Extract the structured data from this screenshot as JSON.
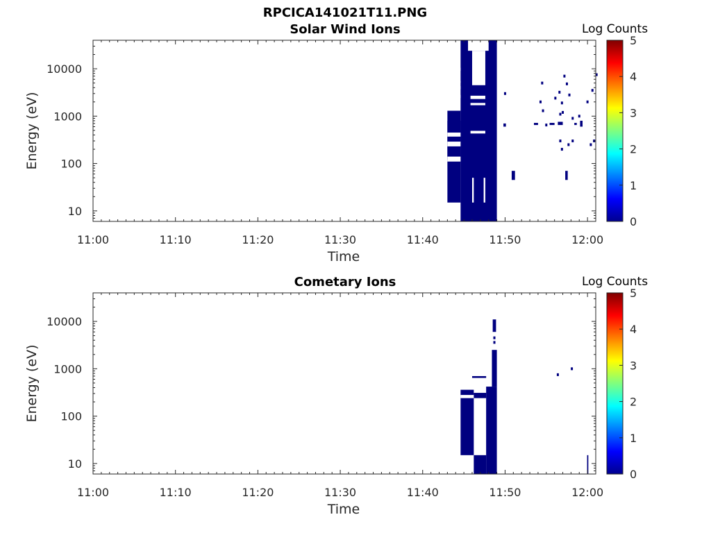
{
  "figure_title": "RPCICA141021T11.PNG",
  "chart_data": [
    {
      "type": "heatmap",
      "title": "Solar Wind Ions",
      "xlabel": "Time",
      "ylabel": "Energy (eV)",
      "x_ticks": [
        "11:00",
        "11:10",
        "11:20",
        "11:30",
        "11:40",
        "11:50",
        "12:00"
      ],
      "y_ticks": [
        "10",
        "100",
        "1000",
        "10000"
      ],
      "y_scale": "log",
      "ylim": [
        6,
        40000
      ],
      "xlim_minutes": [
        0,
        61
      ],
      "colorbar": {
        "label": "Log Counts",
        "range": [
          0,
          5
        ],
        "ticks": [
          "0",
          "1",
          "2",
          "3",
          "4",
          "5"
        ]
      },
      "fill_color": "#000080",
      "cells": [
        {
          "t": [
            43.0,
            44.6
          ],
          "e": [
            15,
            1300
          ]
        },
        {
          "t": [
            44.6,
            49.0
          ],
          "e": [
            6,
            40000
          ]
        },
        {
          "t": [
            43.0,
            44.6
          ],
          "e": [
            120,
            800
          ]
        },
        {
          "t": [
            50.8,
            51.2
          ],
          "e": [
            45,
            70
          ]
        },
        {
          "t": [
            49.8,
            50.1
          ],
          "e": [
            600,
            700
          ]
        },
        {
          "t": [
            53.5,
            54.0
          ],
          "e": [
            650,
            720
          ]
        },
        {
          "t": [
            55.4,
            56.0
          ],
          "e": [
            650,
            720
          ]
        },
        {
          "t": [
            56.4,
            57.0
          ],
          "e": [
            650,
            760
          ]
        },
        {
          "t": [
            57.3,
            57.6
          ],
          "e": [
            45,
            70
          ]
        },
        {
          "t": [
            58.4,
            58.7
          ],
          "e": [
            650,
            720
          ]
        },
        {
          "t": [
            59.1,
            59.4
          ],
          "e": [
            600,
            800
          ]
        }
      ],
      "gaps": [
        {
          "t": [
            45.5,
            48.0
          ],
          "e": [
            24000,
            40000
          ]
        },
        {
          "t": [
            46.0,
            47.6
          ],
          "e": [
            4500,
            24000
          ]
        },
        {
          "t": [
            43.0,
            44.6
          ],
          "e": [
            9000,
            10500
          ]
        },
        {
          "t": [
            43.0,
            44.6
          ],
          "e": [
            5000,
            5600
          ]
        },
        {
          "t": [
            43.0,
            44.6
          ],
          "e": [
            3700,
            4300
          ]
        },
        {
          "t": [
            43.0,
            44.6
          ],
          "e": [
            2400,
            2800
          ]
        },
        {
          "t": [
            43.0,
            44.6
          ],
          "e": [
            370,
            450
          ]
        },
        {
          "t": [
            43.0,
            44.6
          ],
          "e": [
            230,
            290
          ]
        },
        {
          "t": [
            43.0,
            44.6
          ],
          "e": [
            110,
            140
          ]
        },
        {
          "t": [
            45.8,
            47.6
          ],
          "e": [
            2300,
            2700
          ]
        },
        {
          "t": [
            45.8,
            47.6
          ],
          "e": [
            1700,
            1900
          ]
        },
        {
          "t": [
            45.8,
            47.6
          ],
          "e": [
            430,
            490
          ]
        },
        {
          "t": [
            46.0,
            46.2
          ],
          "e": [
            15,
            50
          ]
        },
        {
          "t": [
            47.4,
            47.6
          ],
          "e": [
            15,
            50
          ]
        }
      ],
      "points": [
        {
          "t": 50.0,
          "e": 3000
        },
        {
          "t": 54.5,
          "e": 5000
        },
        {
          "t": 54.3,
          "e": 2000
        },
        {
          "t": 54.6,
          "e": 1300
        },
        {
          "t": 55.0,
          "e": 650
        },
        {
          "t": 56.1,
          "e": 2400
        },
        {
          "t": 56.6,
          "e": 3200
        },
        {
          "t": 56.9,
          "e": 1900
        },
        {
          "t": 57.2,
          "e": 7000
        },
        {
          "t": 57.5,
          "e": 4800
        },
        {
          "t": 57.8,
          "e": 2800
        },
        {
          "t": 56.7,
          "e": 1100
        },
        {
          "t": 57.0,
          "e": 1200
        },
        {
          "t": 58.2,
          "e": 900
        },
        {
          "t": 56.7,
          "e": 300
        },
        {
          "t": 56.9,
          "e": 200
        },
        {
          "t": 57.7,
          "e": 250
        },
        {
          "t": 58.2,
          "e": 300
        },
        {
          "t": 60.0,
          "e": 2000
        },
        {
          "t": 60.6,
          "e": 3500
        },
        {
          "t": 60.4,
          "e": 250
        },
        {
          "t": 60.8,
          "e": 300
        },
        {
          "t": 61.1,
          "e": 7500
        },
        {
          "t": 59.0,
          "e": 1000
        }
      ]
    },
    {
      "type": "heatmap",
      "title": "Cometary Ions",
      "xlabel": "Time",
      "ylabel": "Energy (eV)",
      "x_ticks": [
        "11:00",
        "11:10",
        "11:20",
        "11:30",
        "11:40",
        "11:50",
        "12:00"
      ],
      "y_ticks": [
        "10",
        "100",
        "1000",
        "10000"
      ],
      "y_scale": "log",
      "ylim": [
        6,
        40000
      ],
      "xlim_minutes": [
        0,
        61
      ],
      "colorbar": {
        "label": "Log Counts",
        "range": [
          0,
          5
        ],
        "ticks": [
          "0",
          "1",
          "2",
          "3",
          "4",
          "5"
        ]
      },
      "fill_color": "#000080",
      "cells": [
        {
          "t": [
            44.6,
            46.2
          ],
          "e": [
            15,
            360
          ]
        },
        {
          "t": [
            46.2,
            47.7
          ],
          "e": [
            6,
            15
          ]
        },
        {
          "t": [
            47.7,
            49.0
          ],
          "e": [
            6,
            420
          ]
        },
        {
          "t": [
            46.2,
            47.7
          ],
          "e": [
            240,
            310
          ]
        },
        {
          "t": [
            48.4,
            49.0
          ],
          "e": [
            420,
            2500
          ]
        },
        {
          "t": [
            48.5,
            48.9
          ],
          "e": [
            6000,
            11000
          ]
        },
        {
          "t": [
            46.0,
            47.7
          ],
          "e": [
            640,
            700
          ]
        },
        {
          "t": [
            59.95,
            60.1
          ],
          "e": [
            6,
            15
          ]
        }
      ],
      "gaps": [
        {
          "t": [
            44.6,
            46.2
          ],
          "e": [
            240,
            280
          ]
        }
      ],
      "points": [
        {
          "t": 48.7,
          "e": 4500
        },
        {
          "t": 48.7,
          "e": 3600
        },
        {
          "t": 56.4,
          "e": 750
        },
        {
          "t": 58.1,
          "e": 1000
        }
      ]
    }
  ]
}
